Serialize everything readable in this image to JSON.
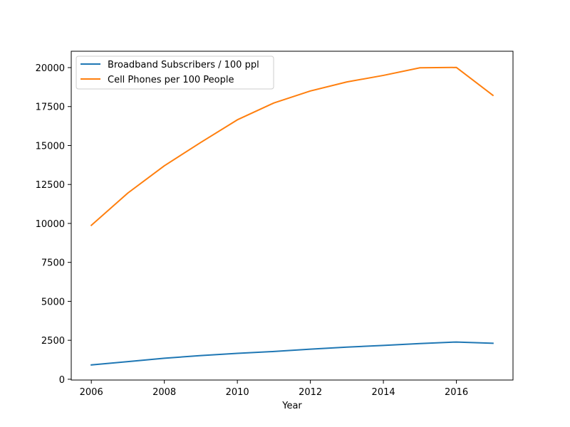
{
  "chart_data": {
    "type": "line",
    "title": "",
    "xlabel": "Year",
    "ylabel": "",
    "xlim": [
      2005.45,
      2017.55
    ],
    "ylim": [
      -50,
      21050
    ],
    "xticks": [
      2006,
      2008,
      2010,
      2012,
      2014,
      2016
    ],
    "yticks": [
      0,
      2500,
      5000,
      7500,
      10000,
      12500,
      15000,
      17500,
      20000
    ],
    "grid": false,
    "legend_position": "top-left",
    "x": [
      2006,
      2007,
      2008,
      2009,
      2010,
      2011,
      2012,
      2013,
      2014,
      2015,
      2016,
      2017
    ],
    "series": [
      {
        "name": "Broadband Subscribers / 100 ppl",
        "color": "#1f77b4",
        "values": [
          920,
          1130,
          1350,
          1520,
          1660,
          1780,
          1930,
          2060,
          2170,
          2290,
          2390,
          2310
        ]
      },
      {
        "name": "Cell Phones per 100 People",
        "color": "#ff7f0e",
        "values": [
          9880,
          11950,
          13700,
          15200,
          16650,
          17730,
          18500,
          19080,
          19500,
          19990,
          20010,
          18220
        ]
      }
    ]
  }
}
